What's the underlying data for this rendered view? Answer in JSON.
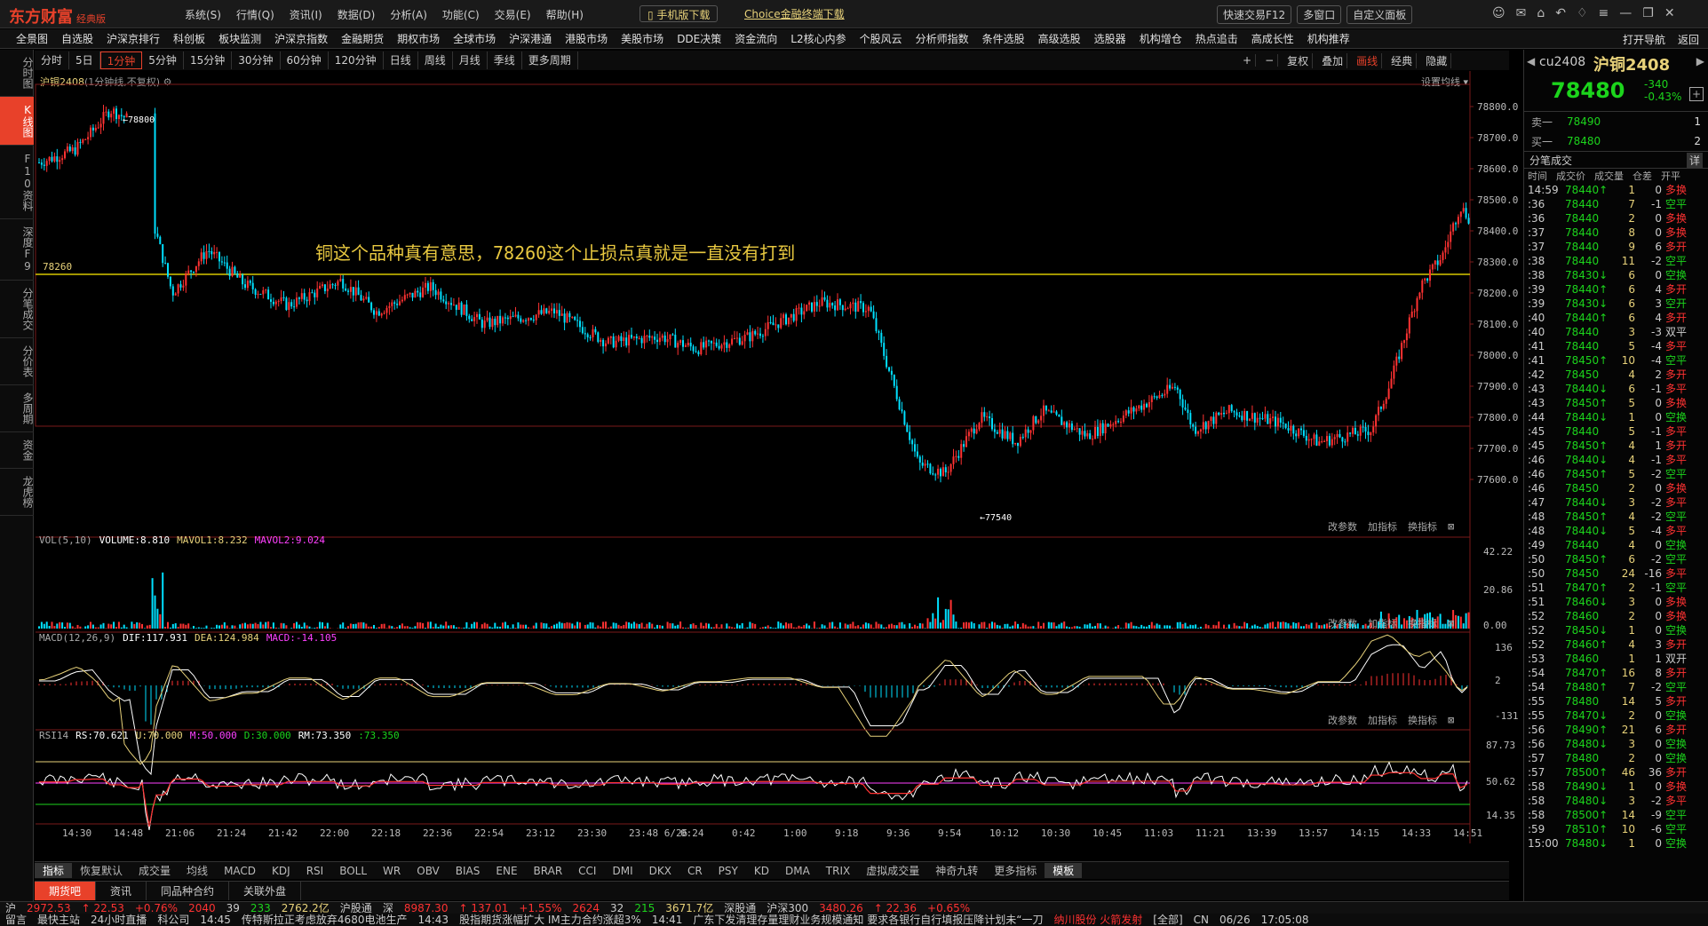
{
  "app": {
    "logo": "东方财富",
    "edition": "经典版"
  },
  "top_menu": [
    "系统(S)",
    "行情(Q)",
    "资讯(I)",
    "数据(D)",
    "分析(A)",
    "功能(C)",
    "交易(E)",
    "帮助(H)"
  ],
  "download_mobile": "手机版下载",
  "download_choice": "Choice金融终端下载",
  "toolbar_right": [
    "快速交易F12",
    "多窗口",
    "自定义面板"
  ],
  "nav": [
    "全景图",
    "自选股",
    "沪深京排行",
    "科创板",
    "板块监测",
    "沪深京指数",
    "金融期货",
    "期权市场",
    "全球市场",
    "沪深港通",
    "港股市场",
    "美股市场",
    "DDE决策",
    "资金流向",
    "L2核心内参",
    "个股风云",
    "分析师指数",
    "条件选股",
    "高级选股",
    "选股器",
    "机构增仓",
    "热点追击",
    "高成长性",
    "机构推荐"
  ],
  "nav_right": [
    "打开导航",
    "返回"
  ],
  "left_tabs": [
    "分时图",
    "K线图",
    "F10资料",
    "深度F9",
    "分笔成交",
    "分价表",
    "多周期",
    "资金",
    "龙虎榜"
  ],
  "left_tabs_active": 1,
  "periods": [
    "分时",
    "5日",
    "1分钟",
    "5分钟",
    "15分钟",
    "30分钟",
    "60分钟",
    "120分钟",
    "日线",
    "周线",
    "月线",
    "季线",
    "更多周期"
  ],
  "periods_active": 2,
  "period_right": [
    "+",
    "−",
    "复权",
    "叠加",
    "画线",
    "经典",
    "隐藏"
  ],
  "chart_header": {
    "symbol": "沪铜2408",
    "desc": "(1分钟线,不复权)",
    "set_ma": "设置均线"
  },
  "annotation": "铜这个品种真有意思，78260这个止损点真就是一直没有打到",
  "hline_label": "78260",
  "high_label": "78800",
  "low_label": "77540",
  "vol": {
    "title": "VOL(5,10)",
    "v": "VOLUME:8.810",
    "ma1": "MAVOL1:8.232",
    "ma2": "MAVOL2:9.024",
    "axis": [
      "42.22",
      "20.86",
      "0.00"
    ]
  },
  "macd": {
    "title": "MACD(12,26,9)",
    "dif": "DIF:117.931",
    "dea": "DEA:124.984",
    "macd": "MACD:-14.105",
    "axis": [
      "136",
      "2",
      "-131"
    ]
  },
  "rsi": {
    "title": "RSI14",
    "rs": "RS:70.621",
    "u": "U:70.000",
    "m": "M:50.000",
    "d": "D:30.000",
    "rm": "RM:73.350",
    "r2": ":73.350",
    "axis": [
      "87.73",
      "50.62",
      "14.35"
    ]
  },
  "sub_actions": [
    "改参数",
    "加指标",
    "换指标"
  ],
  "price_axis": [
    "78800.0",
    "78700.0",
    "78600.0",
    "78500.0",
    "78400.0",
    "78300.0",
    "78200.0",
    "78100.0",
    "78000.0",
    "77900.0",
    "77800.0",
    "77700.0",
    "77600.0"
  ],
  "time_axis": [
    "14:30",
    "14:48",
    "21:06",
    "21:24",
    "21:42",
    "22:00",
    "22:18",
    "22:36",
    "22:54",
    "23:12",
    "23:30",
    "23:48 6/26",
    "0:24",
    "0:42",
    "1:00",
    "9:18",
    "9:36",
    "9:54",
    "10:12",
    "10:30",
    "10:45",
    "11:03",
    "11:21",
    "13:39",
    "13:57",
    "14:15",
    "14:33",
    "14:51"
  ],
  "indicators": [
    "指标",
    "恢复默认",
    "成交量",
    "均线",
    "MACD",
    "KDJ",
    "RSI",
    "BOLL",
    "WR",
    "OBV",
    "BIAS",
    "ENE",
    "BRAR",
    "CCI",
    "DMI",
    "DKX",
    "CR",
    "PSY",
    "KD",
    "DMA",
    "TRIX",
    "虚拟成交量",
    "神奇九转",
    "更多指标",
    "模板"
  ],
  "bottom_tabs": [
    "期货吧",
    "资讯",
    "同品种合约",
    "关联外盘"
  ],
  "quote": {
    "code": "cu2408",
    "name": "沪铜2408",
    "price": "78480",
    "chg": "-340",
    "pct": "-0.43%"
  },
  "orderbook": [
    {
      "l": "卖一",
      "p": "78490",
      "v": "1"
    },
    {
      "l": "买一",
      "p": "78480",
      "v": "2"
    }
  ],
  "ticks_title": "分笔成交",
  "ticks_btn": "详",
  "tick_cols": [
    "时间",
    "成交价",
    "成交量",
    "仓差",
    "开平"
  ],
  "ticks": [
    [
      "14:59",
      "78440↑",
      "1",
      "0",
      "多换"
    ],
    [
      ":36",
      "78440",
      "7",
      "-1",
      "空平"
    ],
    [
      ":36",
      "78440",
      "2",
      "0",
      "多换"
    ],
    [
      ":37",
      "78440",
      "8",
      "0",
      "多换"
    ],
    [
      ":37",
      "78440",
      "9",
      "6",
      "多开"
    ],
    [
      ":38",
      "78440",
      "11",
      "-2",
      "空平"
    ],
    [
      ":38",
      "78430↓",
      "6",
      "0",
      "空换"
    ],
    [
      ":39",
      "78440↑",
      "6",
      "4",
      "多开"
    ],
    [
      ":39",
      "78430↓",
      "6",
      "3",
      "空开"
    ],
    [
      ":40",
      "78440↑",
      "6",
      "4",
      "多开"
    ],
    [
      ":40",
      "78440",
      "3",
      "-3",
      "双平"
    ],
    [
      ":41",
      "78440",
      "5",
      "-4",
      "多平"
    ],
    [
      ":41",
      "78450↑",
      "10",
      "-4",
      "空平"
    ],
    [
      ":42",
      "78450",
      "4",
      "2",
      "多开"
    ],
    [
      ":43",
      "78440↓",
      "6",
      "-1",
      "多平"
    ],
    [
      ":43",
      "78450↑",
      "5",
      "0",
      "多换"
    ],
    [
      ":44",
      "78440↓",
      "1",
      "0",
      "空换"
    ],
    [
      ":45",
      "78440",
      "5",
      "-1",
      "多平"
    ],
    [
      ":45",
      "78450↑",
      "4",
      "1",
      "多开"
    ],
    [
      ":46",
      "78440↓",
      "4",
      "-1",
      "多平"
    ],
    [
      ":46",
      "78450↑",
      "5",
      "-2",
      "空平"
    ],
    [
      ":46",
      "78450",
      "2",
      "0",
      "多换"
    ],
    [
      ":47",
      "78440↓",
      "3",
      "-2",
      "多平"
    ],
    [
      ":48",
      "78450↑",
      "4",
      "-2",
      "空平"
    ],
    [
      ":48",
      "78440↓",
      "5",
      "-4",
      "多平"
    ],
    [
      ":49",
      "78440",
      "4",
      "0",
      "空换"
    ],
    [
      ":50",
      "78450↑",
      "6",
      "-2",
      "空平"
    ],
    [
      ":50",
      "78450",
      "24",
      "-16",
      "多平"
    ],
    [
      ":51",
      "78470↑",
      "2",
      "-1",
      "空平"
    ],
    [
      ":51",
      "78460↓",
      "3",
      "0",
      "多换"
    ],
    [
      ":52",
      "78460",
      "2",
      "0",
      "多换"
    ],
    [
      ":52",
      "78450↓",
      "1",
      "0",
      "空换"
    ],
    [
      ":52",
      "78460↑",
      "4",
      "3",
      "多开"
    ],
    [
      ":53",
      "78460",
      "1",
      "1",
      "双开"
    ],
    [
      ":54",
      "78470↑",
      "16",
      "8",
      "多开"
    ],
    [
      ":54",
      "78480↑",
      "7",
      "-2",
      "空平"
    ],
    [
      ":55",
      "78480",
      "14",
      "5",
      "多开"
    ],
    [
      ":55",
      "78470↓",
      "2",
      "0",
      "空换"
    ],
    [
      ":56",
      "78490↑",
      "21",
      "6",
      "多开"
    ],
    [
      ":56",
      "78480↓",
      "3",
      "0",
      "空换"
    ],
    [
      ":57",
      "78480",
      "2",
      "0",
      "空换"
    ],
    [
      ":57",
      "78500↑",
      "46",
      "36",
      "多开"
    ],
    [
      ":58",
      "78490↓",
      "1",
      "0",
      "多换"
    ],
    [
      ":58",
      "78480↓",
      "3",
      "-2",
      "多平"
    ],
    [
      ":58",
      "78500↑",
      "14",
      "-9",
      "空平"
    ],
    [
      ":59",
      "78510↑",
      "10",
      "-6",
      "空平"
    ],
    [
      "15:00",
      "78480↓",
      "1",
      "0",
      "空换"
    ]
  ],
  "idx": [
    {
      "n": "沪",
      "v": "2972.53",
      "c": "22.53",
      "p": "+0.76%",
      "a": "2040",
      "b": "39",
      "d": "233",
      "amt": "2762.2亿"
    },
    {
      "n": "沪股通",
      "extra": "深",
      "v": "8987.30",
      "c": "137.01",
      "p": "+1.55%",
      "a": "2624",
      "b": "32",
      "d": "215",
      "amt": "3671.7亿"
    },
    {
      "n": "深股通",
      "extra": "沪深300",
      "v": "3480.26",
      "c": "22.36",
      "p": "+0.65%"
    }
  ],
  "news": [
    "留言",
    "最快主站",
    "24小时直播",
    "科公司",
    "14:45",
    "传特斯拉正考虑放弃4680电池生产",
    "14:43",
    "股指期货涨幅扩大 IM主力合约涨超3%",
    "14:41",
    "广东下发清理存量理财业务规模通知 要求各银行自行填报压降计划未“一刀",
    "纳川股份 火箭发射",
    "[全部]",
    "CN",
    "06/26",
    "17:05:08"
  ],
  "colors": {
    "up": "#ff3232",
    "down": "#00e0ff",
    "green": "#1cd41c",
    "yellow": "#e8d27a",
    "accent": "#e8412a"
  }
}
